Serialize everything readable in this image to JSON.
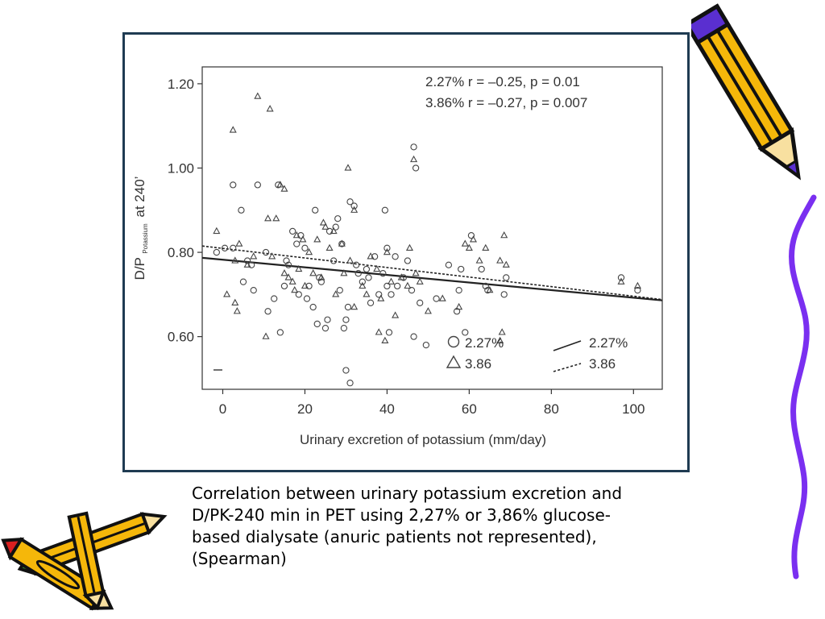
{
  "caption": "Correlation between urinary potassium excretion and\nD/PK-240 min in PET using 2,27% or 3,86% glucose-\nbased dialysate (anuric patients not represented),\n(Spearman)",
  "colors": {
    "frame": "#1f3b52",
    "axis": "#333333",
    "ink": "#444444",
    "wavy_line": "#7a2ff0",
    "pencil_yellow": "#f5b70a",
    "pencil_outline": "#111111"
  },
  "icons": [
    "pencil-icon",
    "crossed-pencils-icon",
    "wavy-line"
  ],
  "chart_data": {
    "type": "scatter",
    "ylabel_main": "D/P",
    "ylabel_sub": "Potassium",
    "ylabel_tail": "at 240’",
    "xlabel": "Urinary excretion of potassium (mm/day)",
    "xlim": [
      -5,
      107
    ],
    "ylim": [
      0.475,
      1.24
    ],
    "xticks": [
      0,
      20,
      40,
      60,
      80,
      100
    ],
    "yticks": [
      0.6,
      0.8,
      1.0,
      1.2
    ],
    "ytick_labels": [
      "0.60",
      "0.80",
      "1.00",
      "1.20"
    ],
    "grid": false,
    "stats": [
      "2.27%  r = –0.25, p = 0.01",
      "3.86% r = –0.27, p = 0.007"
    ],
    "legend_placement": "bottom-right",
    "legend_markers": [
      {
        "marker": "circle",
        "label": "2.27%"
      },
      {
        "marker": "triangle",
        "label": "3.86"
      }
    ],
    "legend_lines": [
      {
        "style": "solid",
        "label": "2.27%"
      },
      {
        "style": "dashed",
        "label": "3.86"
      }
    ],
    "series": [
      {
        "name": "2.27%",
        "marker": "circle",
        "points": [
          [
            -1.5,
            0.8
          ],
          [
            0.5,
            0.81
          ],
          [
            2.5,
            0.96
          ],
          [
            2.5,
            0.81
          ],
          [
            4.5,
            0.9
          ],
          [
            5,
            0.73
          ],
          [
            6,
            0.78
          ],
          [
            7,
            0.77
          ],
          [
            7.5,
            0.71
          ],
          [
            8.5,
            0.96
          ],
          [
            10.5,
            0.8
          ],
          [
            11,
            0.66
          ],
          [
            12.5,
            0.69
          ],
          [
            13.5,
            0.96
          ],
          [
            14,
            0.61
          ],
          [
            15,
            0.72
          ],
          [
            15.5,
            0.78
          ],
          [
            16,
            0.77
          ],
          [
            17,
            0.85
          ],
          [
            18,
            0.82
          ],
          [
            18.5,
            0.7
          ],
          [
            19,
            0.84
          ],
          [
            20,
            0.81
          ],
          [
            20.5,
            0.69
          ],
          [
            21,
            0.72
          ],
          [
            22,
            0.67
          ],
          [
            22.5,
            0.9
          ],
          [
            23,
            0.63
          ],
          [
            23.5,
            0.74
          ],
          [
            24,
            0.73
          ],
          [
            25,
            0.62
          ],
          [
            25.5,
            0.64
          ],
          [
            26,
            0.85
          ],
          [
            27,
            0.78
          ],
          [
            27.5,
            0.86
          ],
          [
            28,
            0.88
          ],
          [
            28.5,
            0.71
          ],
          [
            29,
            0.82
          ],
          [
            29.5,
            0.62
          ],
          [
            30,
            0.64
          ],
          [
            30,
            0.52
          ],
          [
            30.5,
            0.67
          ],
          [
            31,
            0.92
          ],
          [
            31,
            0.49
          ],
          [
            32,
            0.91
          ],
          [
            32.5,
            0.77
          ],
          [
            33,
            0.75
          ],
          [
            34,
            0.73
          ],
          [
            35,
            0.76
          ],
          [
            35.5,
            0.74
          ],
          [
            36,
            0.68
          ],
          [
            37,
            0.79
          ],
          [
            38,
            0.7
          ],
          [
            39,
            0.75
          ],
          [
            39.5,
            0.9
          ],
          [
            40,
            0.81
          ],
          [
            40,
            0.72
          ],
          [
            40.5,
            0.61
          ],
          [
            41,
            0.7
          ],
          [
            42,
            0.79
          ],
          [
            42.5,
            0.72
          ],
          [
            44,
            0.74
          ],
          [
            45,
            0.78
          ],
          [
            46,
            0.71
          ],
          [
            46.5,
            0.6
          ],
          [
            46.5,
            1.05
          ],
          [
            47,
            1.0
          ],
          [
            48,
            0.68
          ],
          [
            49.5,
            0.58
          ],
          [
            52,
            0.69
          ],
          [
            55,
            0.77
          ],
          [
            57,
            0.66
          ],
          [
            57.5,
            0.71
          ],
          [
            58,
            0.76
          ],
          [
            59,
            0.61
          ],
          [
            60.5,
            0.84
          ],
          [
            63,
            0.76
          ],
          [
            64,
            0.72
          ],
          [
            64.5,
            0.71
          ],
          [
            68.5,
            0.7
          ],
          [
            69,
            0.74
          ],
          [
            97,
            0.74
          ],
          [
            101,
            0.71
          ]
        ]
      },
      {
        "name": "3.86",
        "marker": "triangle",
        "points": [
          [
            -1.5,
            0.85
          ],
          [
            1,
            0.7
          ],
          [
            2.5,
            1.09
          ],
          [
            3,
            0.78
          ],
          [
            3,
            0.68
          ],
          [
            3.5,
            0.66
          ],
          [
            4,
            0.82
          ],
          [
            6,
            0.77
          ],
          [
            7.5,
            0.79
          ],
          [
            8.5,
            1.17
          ],
          [
            10.5,
            0.6
          ],
          [
            11,
            0.88
          ],
          [
            11.5,
            1.14
          ],
          [
            12,
            0.79
          ],
          [
            13,
            0.88
          ],
          [
            14,
            0.96
          ],
          [
            15,
            0.75
          ],
          [
            15,
            0.95
          ],
          [
            16,
            0.74
          ],
          [
            17,
            0.73
          ],
          [
            17.5,
            0.71
          ],
          [
            18,
            0.84
          ],
          [
            18.5,
            0.76
          ],
          [
            19.5,
            0.83
          ],
          [
            20,
            0.72
          ],
          [
            21,
            0.8
          ],
          [
            22,
            0.75
          ],
          [
            23,
            0.83
          ],
          [
            24,
            0.74
          ],
          [
            24.5,
            0.87
          ],
          [
            25,
            0.86
          ],
          [
            26,
            0.81
          ],
          [
            27,
            0.85
          ],
          [
            27.5,
            0.7
          ],
          [
            29,
            0.82
          ],
          [
            29.5,
            0.75
          ],
          [
            30.5,
            1.0
          ],
          [
            31,
            0.78
          ],
          [
            32,
            0.67
          ],
          [
            32,
            0.9
          ],
          [
            34,
            0.72
          ],
          [
            35,
            0.7
          ],
          [
            36,
            0.79
          ],
          [
            37.5,
            0.76
          ],
          [
            38,
            0.61
          ],
          [
            38.5,
            0.69
          ],
          [
            39.5,
            0.59
          ],
          [
            40,
            0.8
          ],
          [
            41,
            0.73
          ],
          [
            42,
            0.65
          ],
          [
            43.5,
            0.74
          ],
          [
            45,
            0.72
          ],
          [
            45.5,
            0.81
          ],
          [
            46.5,
            1.02
          ],
          [
            47,
            0.75
          ],
          [
            48,
            0.73
          ],
          [
            50,
            0.66
          ],
          [
            53.5,
            0.69
          ],
          [
            57.5,
            0.67
          ],
          [
            59,
            0.82
          ],
          [
            60,
            0.81
          ],
          [
            61,
            0.83
          ],
          [
            62.5,
            0.78
          ],
          [
            64,
            0.81
          ],
          [
            65,
            0.71
          ],
          [
            67.5,
            0.78
          ],
          [
            68,
            0.61
          ],
          [
            68.5,
            0.84
          ],
          [
            69,
            0.77
          ],
          [
            97,
            0.73
          ],
          [
            101,
            0.72
          ],
          [
            67.5,
            0.59
          ]
        ]
      }
    ],
    "regression_lines": [
      {
        "name": "2.27%",
        "style": "solid",
        "x": [
          -5,
          107
        ],
        "y": [
          0.787,
          0.686
        ]
      },
      {
        "name": "3.86",
        "style": "dashed",
        "x": [
          -5,
          107
        ],
        "y": [
          0.815,
          0.688
        ]
      }
    ]
  }
}
